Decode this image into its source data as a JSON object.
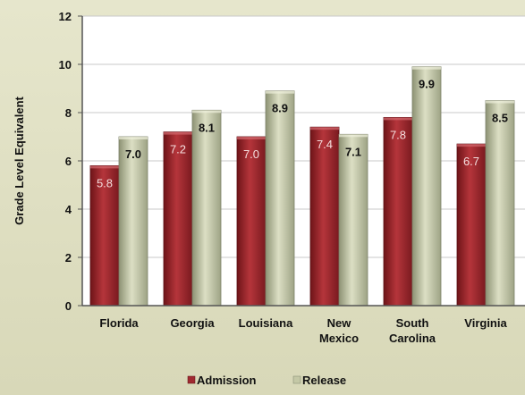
{
  "chart_data": {
    "type": "bar",
    "categories": [
      [
        "Florida"
      ],
      [
        "Georgia"
      ],
      [
        "Louisiana"
      ],
      [
        "New",
        "Mexico"
      ],
      [
        "South",
        "Carolina"
      ],
      [
        "Virginia"
      ]
    ],
    "series": [
      {
        "name": "Admission",
        "values": [
          5.8,
          7.2,
          7.0,
          7.4,
          7.8,
          6.7
        ],
        "labels": [
          "5.8",
          "7.2",
          "7.0",
          "7.4",
          "7.8",
          "6.7"
        ],
        "color": "#a02a30",
        "label_color": "#f4dede"
      },
      {
        "name": "Release",
        "values": [
          7.0,
          8.1,
          8.9,
          7.1,
          9.9,
          8.5
        ],
        "labels": [
          "7.0",
          "8.1",
          "8.9",
          "7.1",
          "9.9",
          "8.5"
        ],
        "color": "#c4c8a6",
        "label_color": "#111111"
      }
    ],
    "ylabel": "Grade Level Equivalent",
    "ylim": [
      0,
      12
    ],
    "yticks": [
      0,
      2,
      4,
      6,
      8,
      10,
      12
    ],
    "grid": true,
    "legend": "bottom-center",
    "colors": {
      "background": "#dcdcbe",
      "plot_area": "#ffffff",
      "grid": "#c9c9c9",
      "axis": "#555555"
    }
  }
}
